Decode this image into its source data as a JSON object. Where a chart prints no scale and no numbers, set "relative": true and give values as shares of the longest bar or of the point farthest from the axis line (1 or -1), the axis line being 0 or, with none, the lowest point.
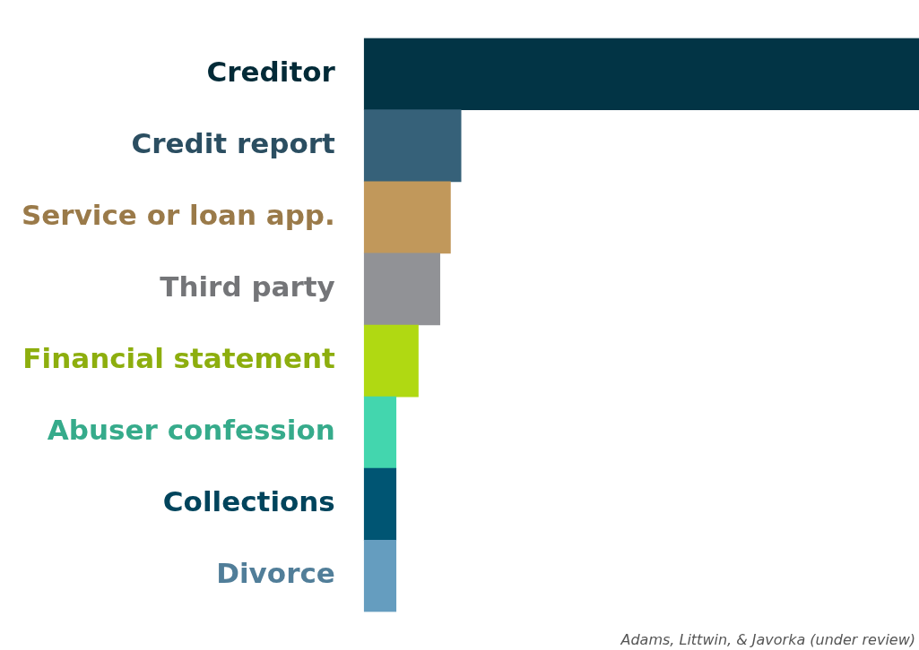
{
  "chart_data": {
    "type": "bar",
    "orientation": "horizontal",
    "relative": true,
    "categories": [
      "Creditor",
      "Credit report",
      "Service or loan app.",
      "Third party",
      "Financial statement",
      "Abuser confession",
      "Collections",
      "Divorce"
    ],
    "values": [
      1,
      0.175,
      0.156,
      0.137,
      0.098,
      0.058,
      0.058,
      0.058
    ],
    "colors": [
      "#023445",
      "#366179",
      "#c1985b",
      "#919296",
      "#b0d912",
      "#43d6ae",
      "#005573",
      "#659dbf"
    ],
    "annotations": [
      "Adams, Littwin, & Javorka (under review)"
    ]
  }
}
